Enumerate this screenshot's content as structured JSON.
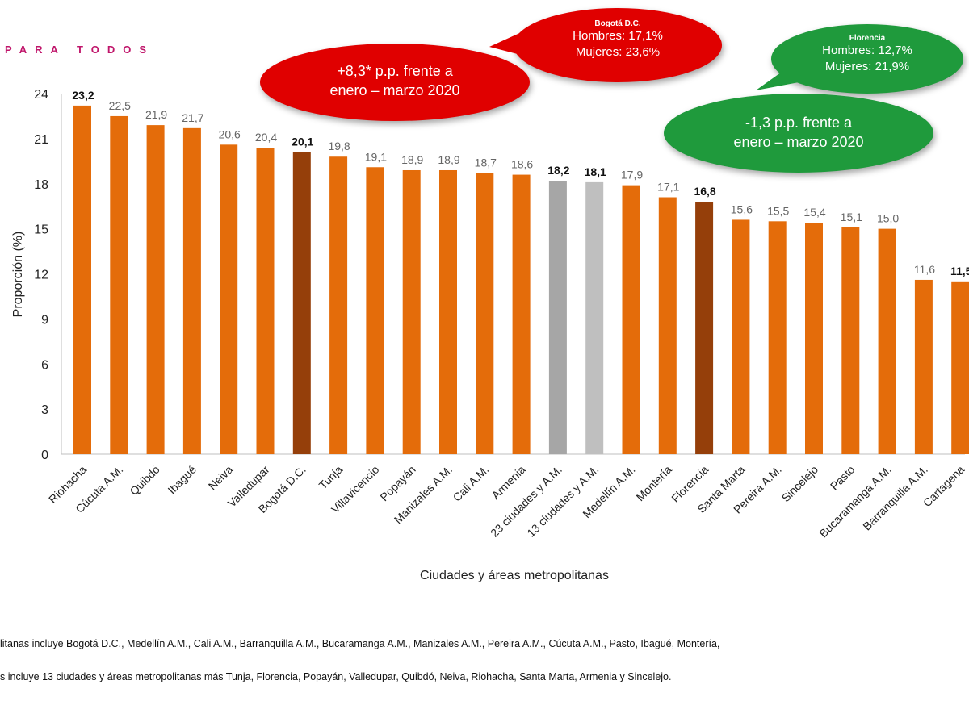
{
  "banner": "PARA TODOS",
  "chart_data": {
    "type": "bar",
    "categories": [
      "Riohacha",
      "Cúcuta A.M.",
      "Quibdó",
      "Ibagué",
      "Neiva",
      "Valledupar",
      "Bogotá D.C.",
      "Tunja",
      "Villavicencio",
      "Popayán",
      "Manizales A.M.",
      "Cali A.M.",
      "Armenia",
      "23 ciudades y A.M.",
      "13 ciudades y A.M.",
      "Medellín A.M.",
      "Montería",
      "Florencia",
      "Santa Marta",
      "Pereira A.M.",
      "Sincelejo",
      "Pasto",
      "Bucaramanga A.M.",
      "Barranquilla A.M.",
      "Cartagena"
    ],
    "values": [
      23.2,
      22.5,
      21.9,
      21.7,
      20.6,
      20.4,
      20.1,
      19.8,
      19.1,
      18.9,
      18.9,
      18.7,
      18.6,
      18.2,
      18.1,
      17.9,
      17.1,
      16.8,
      15.6,
      15.5,
      15.4,
      15.1,
      15.0,
      11.6,
      11.5
    ],
    "value_labels": [
      "23,2",
      "22,5",
      "21,9",
      "21,7",
      "20,6",
      "20,4",
      "20,1",
      "19,8",
      "19,1",
      "18,9",
      "18,9",
      "18,7",
      "18,6",
      "18,2",
      "18,1",
      "17,9",
      "17,1",
      "16,8",
      "15,6",
      "15,5",
      "15,4",
      "15,1",
      "15,0",
      "11,6",
      "11,5"
    ],
    "bold_labels": [
      0,
      6,
      13,
      14,
      17,
      24
    ],
    "colors": [
      "#e46c0a",
      "#e46c0a",
      "#e46c0a",
      "#e46c0a",
      "#e46c0a",
      "#e46c0a",
      "#953f0a",
      "#e46c0a",
      "#e46c0a",
      "#e46c0a",
      "#e46c0a",
      "#e46c0a",
      "#e46c0a",
      "#a6a6a6",
      "#bfbfbf",
      "#e46c0a",
      "#e46c0a",
      "#953f0a",
      "#e46c0a",
      "#e46c0a",
      "#e46c0a",
      "#e46c0a",
      "#e46c0a",
      "#e46c0a",
      "#e46c0a"
    ],
    "ylabel": "Proporción (%)",
    "xlabel": "Ciudades y áreas metropolitanas",
    "yticks": [
      0,
      3,
      6,
      9,
      12,
      15,
      18,
      21,
      24
    ],
    "ylim": [
      0,
      24
    ],
    "grid": false
  },
  "callouts": {
    "bogota": {
      "title": "Bogotá D.C.",
      "hombres": "Hombres: 17,1%",
      "mujeres": "Mujeres: 23,6%",
      "color": "#e00000"
    },
    "bogota_change": {
      "line1": "+8,3* p.p. frente a",
      "line2": "enero – marzo 2020",
      "color": "#e00000"
    },
    "florencia": {
      "title": "Florencia",
      "hombres": "Hombres: 12,7%",
      "mujeres": "Mujeres: 21,9%",
      "color": "#1f9a3c"
    },
    "florencia_change": {
      "line1": "-1,3 p.p. frente a",
      "line2": "enero – marzo 2020",
      "color": "#1f9a3c"
    }
  },
  "notes": {
    "line1": "litanas incluye Bogotá D.C., Medellín A.M., Cali A.M., Barranquilla A.M., Bucaramanga A.M., Manizales A.M., Pereira A.M., Cúcuta A.M., Pasto, Ibagué, Montería,",
    "line2": "s incluye 13 ciudades y áreas metropolitanas más Tunja, Florencia, Popayán, Valledupar, Quibdó, Neiva, Riohacha, Santa Marta, Armenia y Sincelejo."
  }
}
